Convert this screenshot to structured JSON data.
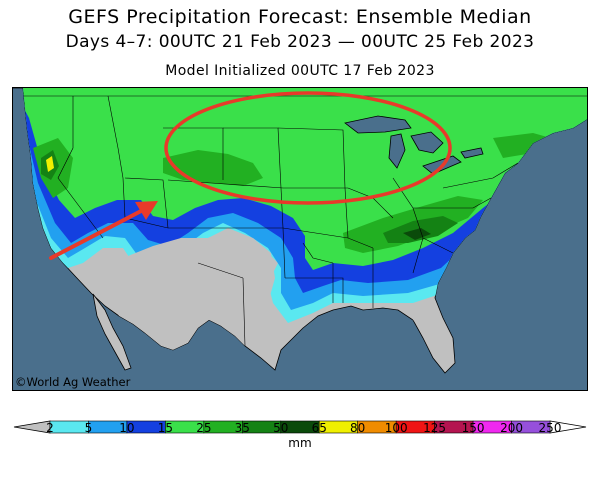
{
  "title": "GEFS Precipitation Forecast: Ensemble Median",
  "subtitle": "Days 4–7: 00UTC 21 Feb 2023 — 00UTC 25 Feb 2023",
  "initialized": "Model Initialized 00UTC 17 Feb 2023",
  "copyright": "©World Ag Weather",
  "colors": {
    "ocean": "#4a6f8c",
    "land_dry": "#c0c0c0",
    "annotation": "#e83a2a"
  },
  "legend": {
    "units": "mm",
    "ticks": [
      "2",
      "5",
      "10",
      "15",
      "25",
      "35",
      "50",
      "65",
      "80",
      "100",
      "125",
      "150",
      "200",
      "250"
    ],
    "colors": [
      "#5ae8f0",
      "#22a0f0",
      "#1440e0",
      "#3ae04a",
      "#22b022",
      "#148214",
      "#0a4a0a",
      "#f0f000",
      "#f08c00",
      "#f01414",
      "#b41450",
      "#f028f0",
      "#9650dc"
    ]
  },
  "annotations": [
    {
      "type": "ellipse",
      "meaning": "northern Plains / Great Lakes highlight"
    },
    {
      "type": "arrow",
      "meaning": "pointing toward northern Rockies"
    }
  ]
}
